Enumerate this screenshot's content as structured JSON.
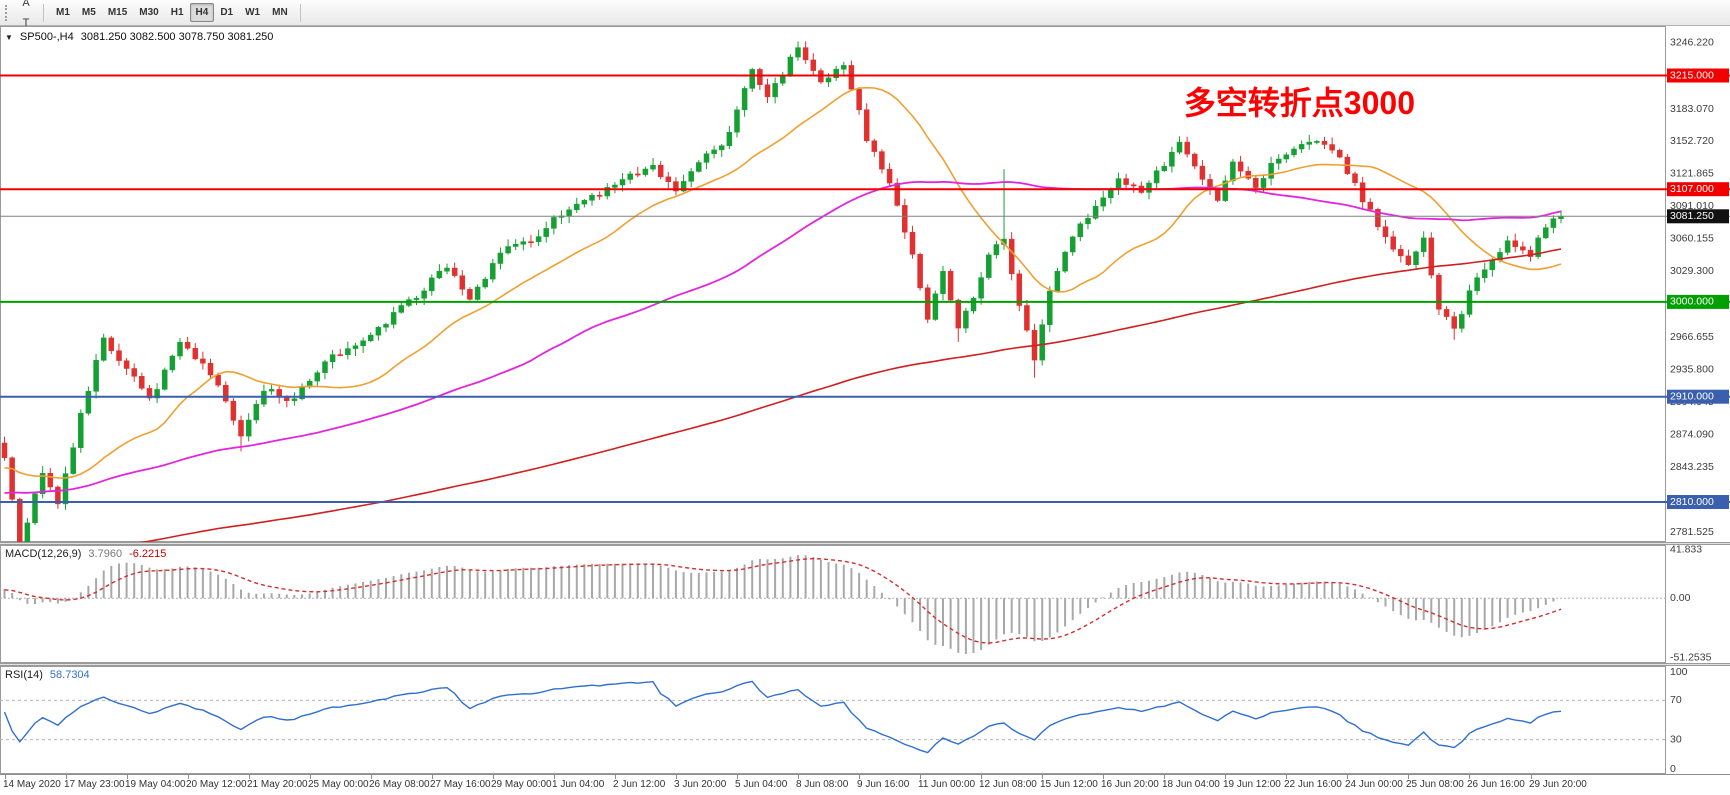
{
  "toolbar": {
    "icon_buttons": [
      {
        "name": "charts-icon",
        "glyph": "▥",
        "caret": false
      },
      {
        "name": "autoscroll-icon",
        "glyph": "A",
        "caret": false
      },
      {
        "name": "chart-shift-icon",
        "glyph": "T",
        "caret": false
      },
      {
        "name": "templates-icon",
        "glyph": "❏",
        "caret": true
      }
    ],
    "timeframes": [
      "M1",
      "M5",
      "M15",
      "M30",
      "H1",
      "H4",
      "D1",
      "W1",
      "MN"
    ],
    "active_timeframe": "H4"
  },
  "header": {
    "dropdown_icon": "▼",
    "symbol_tf": "SP500-,H4",
    "ohlc": "3081.250 3082.500 3078.750 3081.250"
  },
  "annotation": {
    "text": "多空转折点3000",
    "color": "#ff0000"
  },
  "macd_panel": {
    "name": "MACD(12,26,9)",
    "value_main": "3.7960",
    "value_signal": "-6.2215"
  },
  "rsi_panel": {
    "name": "RSI(14)",
    "value": "58.7304"
  },
  "chart_data": {
    "type": "candlestick",
    "symbol": "SP500-",
    "timeframe": "H4",
    "last_close": 3081.25,
    "price_range": [
      2772,
      3262
    ],
    "candle_count": 205,
    "up_color": "#16a034",
    "down_color": "#e03131",
    "close_anchors": [
      [
        0,
        2852
      ],
      [
        2,
        2770
      ],
      [
        5,
        2838
      ],
      [
        7,
        2806
      ],
      [
        10,
        2892
      ],
      [
        13,
        2966
      ],
      [
        16,
        2936
      ],
      [
        19,
        2906
      ],
      [
        23,
        2962
      ],
      [
        27,
        2934
      ],
      [
        31,
        2872
      ],
      [
        34,
        2918
      ],
      [
        38,
        2906
      ],
      [
        42,
        2946
      ],
      [
        47,
        2962
      ],
      [
        51,
        2988
      ],
      [
        55,
        3012
      ],
      [
        58,
        3034
      ],
      [
        61,
        3000
      ],
      [
        65,
        3048
      ],
      [
        69,
        3058
      ],
      [
        73,
        3084
      ],
      [
        77,
        3098
      ],
      [
        81,
        3118
      ],
      [
        85,
        3128
      ],
      [
        88,
        3106
      ],
      [
        91,
        3132
      ],
      [
        95,
        3158
      ],
      [
        98,
        3222
      ],
      [
        100,
        3192
      ],
      [
        104,
        3242
      ],
      [
        107,
        3206
      ],
      [
        110,
        3228
      ],
      [
        113,
        3156
      ],
      [
        116,
        3114
      ],
      [
        119,
        3044
      ],
      [
        121,
        2986
      ],
      [
        123,
        3030
      ],
      [
        125,
        2976
      ],
      [
        127,
        3004
      ],
      [
        129,
        3046
      ],
      [
        131,
        3058
      ],
      [
        133,
        2996
      ],
      [
        135,
        2946
      ],
      [
        137,
        3012
      ],
      [
        140,
        3060
      ],
      [
        143,
        3094
      ],
      [
        146,
        3118
      ],
      [
        149,
        3102
      ],
      [
        152,
        3132
      ],
      [
        154,
        3154
      ],
      [
        157,
        3118
      ],
      [
        159,
        3096
      ],
      [
        161,
        3132
      ],
      [
        164,
        3106
      ],
      [
        166,
        3130
      ],
      [
        169,
        3148
      ],
      [
        172,
        3156
      ],
      [
        175,
        3138
      ],
      [
        178,
        3098
      ],
      [
        181,
        3062
      ],
      [
        184,
        3036
      ],
      [
        186,
        3058
      ],
      [
        188,
        2996
      ],
      [
        190,
        2974
      ],
      [
        192,
        3008
      ],
      [
        194,
        3034
      ],
      [
        197,
        3058
      ],
      [
        200,
        3046
      ],
      [
        202,
        3070
      ],
      [
        204,
        3081.25
      ]
    ],
    "spike_highs": [
      [
        104,
        3247
      ],
      [
        131,
        3126
      ]
    ],
    "spike_lows": [
      [
        2,
        2756
      ],
      [
        31,
        2858
      ],
      [
        125,
        2962
      ],
      [
        135,
        2928
      ],
      [
        190,
        2964
      ]
    ],
    "history": {
      "bars": 230,
      "start_price": 2620
    },
    "moving_averages": [
      {
        "name": "sma-fast",
        "window": 20,
        "color": "#f0a030",
        "width": 1.6
      },
      {
        "name": "sma-mid",
        "window": 68,
        "color": "#e326de",
        "width": 1.8
      },
      {
        "name": "sma-slow",
        "window": 200,
        "color": "#d02020",
        "width": 1.6
      }
    ],
    "y_ticks": [
      {
        "v": 3246.22,
        "label": "3246.220"
      },
      {
        "v": 3183.07,
        "label": "3183.070"
      },
      {
        "v": 3152.72,
        "label": "3152.720"
      },
      {
        "v": 3121.865,
        "label": "3121.865"
      },
      {
        "v": 3091.01,
        "label": "3091.010"
      },
      {
        "v": 3060.155,
        "label": "3060.155"
      },
      {
        "v": 3029.3,
        "label": "3029.300"
      },
      {
        "v": 2966.655,
        "label": "2966.655"
      },
      {
        "v": 2935.8,
        "label": "2935.800"
      },
      {
        "v": 2904.945,
        "label": "2904.945"
      },
      {
        "v": 2874.09,
        "label": "2874.090"
      },
      {
        "v": 2843.235,
        "label": "2843.235"
      },
      {
        "v": 2781.525,
        "label": "2781.525"
      }
    ],
    "levels": [
      {
        "v": 3215,
        "label": "3215.000",
        "color": "#f20000"
      },
      {
        "v": 3107,
        "label": "3107.000",
        "color": "#f20000"
      },
      {
        "v": 3000,
        "label": "3000.000",
        "color": "#00a000"
      },
      {
        "v": 2910,
        "label": "2910.000",
        "color": "#3a5fae"
      },
      {
        "v": 2810,
        "label": "2810.000",
        "color": "#3a5fae"
      }
    ],
    "current_price": {
      "v": 3081.25,
      "label": "3081.250",
      "chip_bg": "#111111",
      "line_color": "#808080"
    },
    "macd": {
      "params": [
        12,
        26,
        9
      ],
      "axis": [
        {
          "v": 41.833,
          "label": "41.833"
        },
        {
          "v": 0,
          "label": "0.00"
        },
        {
          "v": -51.2535,
          "label": "-51.2535"
        }
      ],
      "range": [
        -56,
        46
      ],
      "hist_color": "#a8a8a8",
      "signal_color": "#d32f2f"
    },
    "rsi": {
      "period": 14,
      "axis": [
        {
          "v": 100,
          "label": "100"
        },
        {
          "v": 70,
          "label": "70"
        },
        {
          "v": 30,
          "label": "30"
        },
        {
          "v": 0,
          "label": "0"
        }
      ],
      "levels": [
        70,
        30
      ],
      "line_color": "#2f6fce"
    },
    "time_labels": [
      "14 May 2020",
      "17 May 23:00",
      "19 May 04:00",
      "20 May 12:00",
      "21 May 20:00",
      "25 May 00:00",
      "26 May 08:00",
      "27 May 16:00",
      "29 May 00:00",
      "1 Jun 04:00",
      "2 Jun 12:00",
      "3 Jun 20:00",
      "5 Jun 04:00",
      "8 Jun 08:00",
      "9 Jun 16:00",
      "11 Jun 00:00",
      "12 Jun 08:00",
      "15 Jun 12:00",
      "16 Jun 20:00",
      "18 Jun 04:00",
      "19 Jun 12:00",
      "22 Jun 16:00",
      "24 Jun 00:00",
      "25 Jun 08:00",
      "26 Jun 16:00",
      "29 Jun 20:00"
    ]
  }
}
